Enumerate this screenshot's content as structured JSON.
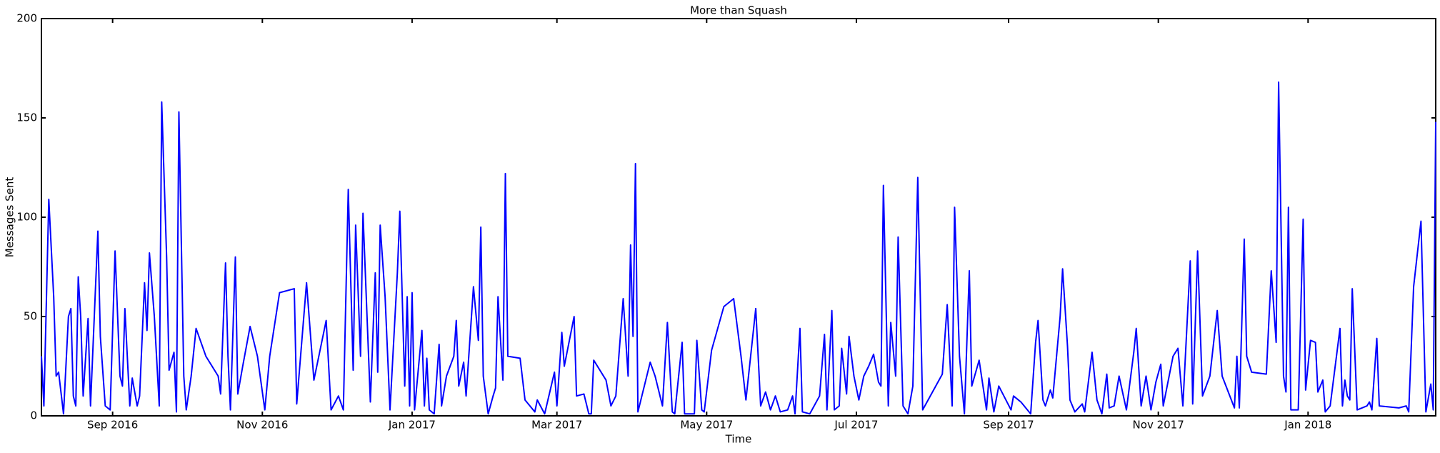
{
  "chart_data": {
    "type": "line",
    "title": "More than Squash",
    "x_label": "Time",
    "y_label": "Messages Sent",
    "x": [
      0,
      1,
      3,
      5,
      6,
      7,
      9,
      11,
      12,
      13,
      14,
      15,
      16,
      17,
      19,
      20,
      23,
      24,
      26,
      28,
      30,
      32,
      33,
      34,
      36,
      37,
      39,
      40,
      42,
      43,
      44,
      46,
      48,
      49,
      51,
      52,
      54,
      55,
      56,
      58,
      59,
      61,
      63,
      67,
      72,
      73,
      75,
      76,
      77,
      79,
      80,
      82,
      85,
      88,
      91,
      93,
      97,
      103,
      104,
      108,
      111,
      116,
      118,
      121,
      123,
      125,
      127,
      128,
      130,
      131,
      134,
      136,
      137,
      138,
      140,
      142,
      145,
      146,
      148,
      149,
      150,
      151,
      152,
      155,
      156,
      157,
      158,
      160,
      162,
      163,
      165,
      168,
      169,
      170,
      172,
      173,
      176,
      178,
      179,
      180,
      182,
      184,
      185,
      186,
      188,
      189,
      190,
      195,
      197,
      199,
      201,
      202,
      205,
      209,
      210,
      212,
      213,
      217,
      218,
      221,
      223,
      224,
      225,
      230,
      232,
      234,
      237,
      239,
      240,
      241,
      242,
      243,
      248,
      250,
      253,
      255,
      257,
      258,
      261,
      262,
      264,
      266,
      267,
      269,
      270,
      273,
      278,
      282,
      285,
      287,
      291,
      293,
      295,
      297,
      299,
      301,
      304,
      306,
      307,
      309,
      310,
      313,
      317,
      319,
      320,
      322,
      323,
      325,
      326,
      328,
      329,
      331,
      333,
      335,
      337,
      339,
      341,
      342,
      343,
      345,
      346,
      348,
      349,
      351,
      353,
      355,
      357,
      359,
      367,
      369,
      371,
      372,
      374,
      376,
      378,
      379,
      382,
      385,
      386,
      388,
      390,
      395,
      396,
      399,
      403,
      405,
      406,
      408,
      409,
      411,
      412,
      415,
      416,
      418,
      419,
      421,
      424,
      425,
      428,
      430,
      432,
      434,
      435,
      437,
      439,
      442,
      445,
      446,
      448,
      450,
      452,
      454,
      456,
      457,
      461,
      463,
      465,
      468,
      469,
      471,
      473,
      476,
      479,
      481,
      486,
      487,
      488,
      490,
      491,
      493,
      499,
      501,
      503,
      504,
      506,
      507,
      508,
      509,
      512,
      514,
      515,
      517,
      519,
      520,
      522,
      523,
      525,
      529,
      530,
      531,
      532,
      533,
      534,
      536,
      540,
      541,
      542,
      544,
      545,
      553,
      556,
      557,
      559,
      562,
      564,
      566,
      567,
      568
    ],
    "series": [
      {
        "name": "Messages Sent",
        "color": "#0000ff",
        "values": [
          30,
          5,
          109,
          60,
          20,
          22,
          1,
          50,
          54,
          10,
          5,
          70,
          50,
          10,
          49,
          5,
          93,
          40,
          5,
          3,
          83,
          20,
          15,
          54,
          5,
          19,
          5,
          10,
          67,
          43,
          82,
          50,
          5,
          158,
          80,
          23,
          32,
          2,
          153,
          20,
          3,
          20,
          44,
          30,
          20,
          11,
          77,
          30,
          3,
          80,
          11,
          25,
          45,
          30,
          3,
          30,
          62,
          64,
          6,
          67,
          18,
          48,
          3,
          10,
          3,
          114,
          23,
          96,
          30,
          102,
          7,
          72,
          22,
          96,
          60,
          3,
          72,
          103,
          15,
          60,
          5,
          62,
          3,
          43,
          5,
          29,
          3,
          1,
          36,
          5,
          20,
          30,
          48,
          15,
          27,
          10,
          65,
          38,
          95,
          20,
          1,
          10,
          14,
          60,
          18,
          122,
          30,
          29,
          8,
          5,
          2,
          8,
          1,
          22,
          5,
          42,
          25,
          50,
          10,
          11,
          1,
          1,
          28,
          18,
          5,
          10,
          59,
          20,
          86,
          40,
          127,
          2,
          27,
          20,
          5,
          47,
          2,
          1,
          37,
          1,
          1,
          1,
          38,
          3,
          2,
          33,
          55,
          59,
          30,
          8,
          54,
          5,
          12,
          3,
          10,
          2,
          3,
          10,
          1,
          44,
          2,
          1,
          10,
          41,
          3,
          53,
          3,
          5,
          34,
          11,
          40,
          20,
          8,
          20,
          25,
          31,
          17,
          15,
          116,
          5,
          47,
          20,
          90,
          5,
          1,
          15,
          120,
          3,
          21,
          56,
          5,
          105,
          30,
          1,
          73,
          15,
          28,
          3,
          19,
          2,
          15,
          3,
          10,
          7,
          1,
          37,
          48,
          8,
          5,
          13,
          9,
          50,
          74,
          35,
          8,
          2,
          6,
          2,
          32,
          8,
          1,
          21,
          4,
          5,
          20,
          3,
          32,
          44,
          5,
          20,
          3,
          17,
          26,
          5,
          30,
          34,
          5,
          78,
          6,
          83,
          10,
          20,
          53,
          20,
          4,
          30,
          4,
          89,
          30,
          22,
          21,
          73,
          37,
          168,
          20,
          12,
          105,
          3,
          3,
          99,
          13,
          38,
          37,
          12,
          18,
          2,
          5,
          44,
          5,
          18,
          10,
          8,
          64,
          3,
          5,
          7,
          3,
          39,
          5,
          4,
          5,
          2,
          65,
          98,
          2,
          16,
          3,
          148
        ]
      }
    ],
    "xlim": [
      0,
      568
    ],
    "xticks": [
      {
        "value": 29,
        "label": "Sep 2016"
      },
      {
        "value": 90,
        "label": "Nov 2016"
      },
      {
        "value": 151,
        "label": "Jan 2017"
      },
      {
        "value": 210,
        "label": "Mar 2017"
      },
      {
        "value": 271,
        "label": "May 2017"
      },
      {
        "value": 332,
        "label": "Jul 2017"
      },
      {
        "value": 394,
        "label": "Sep 2017"
      },
      {
        "value": 455,
        "label": "Nov 2017"
      },
      {
        "value": 516,
        "label": "Jan 2018"
      }
    ],
    "ylim": [
      0,
      200
    ],
    "yticks": [
      0,
      50,
      100,
      150,
      200
    ],
    "grid": false
  }
}
